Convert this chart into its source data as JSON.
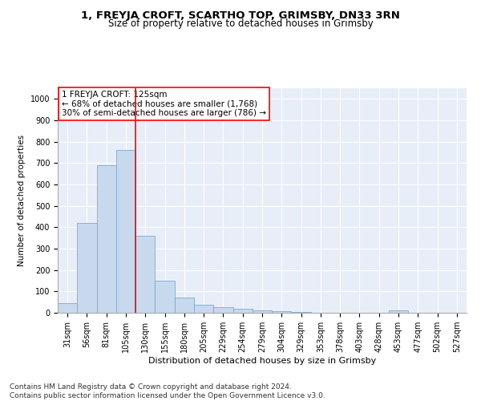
{
  "title": "1, FREYJA CROFT, SCARTHO TOP, GRIMSBY, DN33 3RN",
  "subtitle": "Size of property relative to detached houses in Grimsby",
  "xlabel": "Distribution of detached houses by size in Grimsby",
  "ylabel": "Number of detached properties",
  "categories": [
    "31sqm",
    "56sqm",
    "81sqm",
    "105sqm",
    "130sqm",
    "155sqm",
    "180sqm",
    "205sqm",
    "229sqm",
    "254sqm",
    "279sqm",
    "304sqm",
    "329sqm",
    "353sqm",
    "378sqm",
    "403sqm",
    "428sqm",
    "453sqm",
    "477sqm",
    "502sqm",
    "527sqm"
  ],
  "values": [
    45,
    420,
    690,
    760,
    360,
    150,
    70,
    38,
    25,
    18,
    12,
    8,
    3,
    0,
    0,
    0,
    0,
    10,
    0,
    0,
    0
  ],
  "bar_color": "#c8d9ee",
  "bar_edge_color": "#7aaad0",
  "ylim": [
    0,
    1050
  ],
  "yticks": [
    0,
    100,
    200,
    300,
    400,
    500,
    600,
    700,
    800,
    900,
    1000
  ],
  "red_line_x": 3.5,
  "annotation_box_text": "1 FREYJA CROFT: 125sqm\n← 68% of detached houses are smaller (1,768)\n30% of semi-detached houses are larger (786) →",
  "background_color": "#e8eef8",
  "footer_text": "Contains HM Land Registry data © Crown copyright and database right 2024.\nContains public sector information licensed under the Open Government Licence v3.0.",
  "title_fontsize": 9.5,
  "subtitle_fontsize": 8.5,
  "xlabel_fontsize": 8,
  "ylabel_fontsize": 7.5,
  "tick_fontsize": 7,
  "annotation_fontsize": 7.5,
  "footer_fontsize": 6.5
}
